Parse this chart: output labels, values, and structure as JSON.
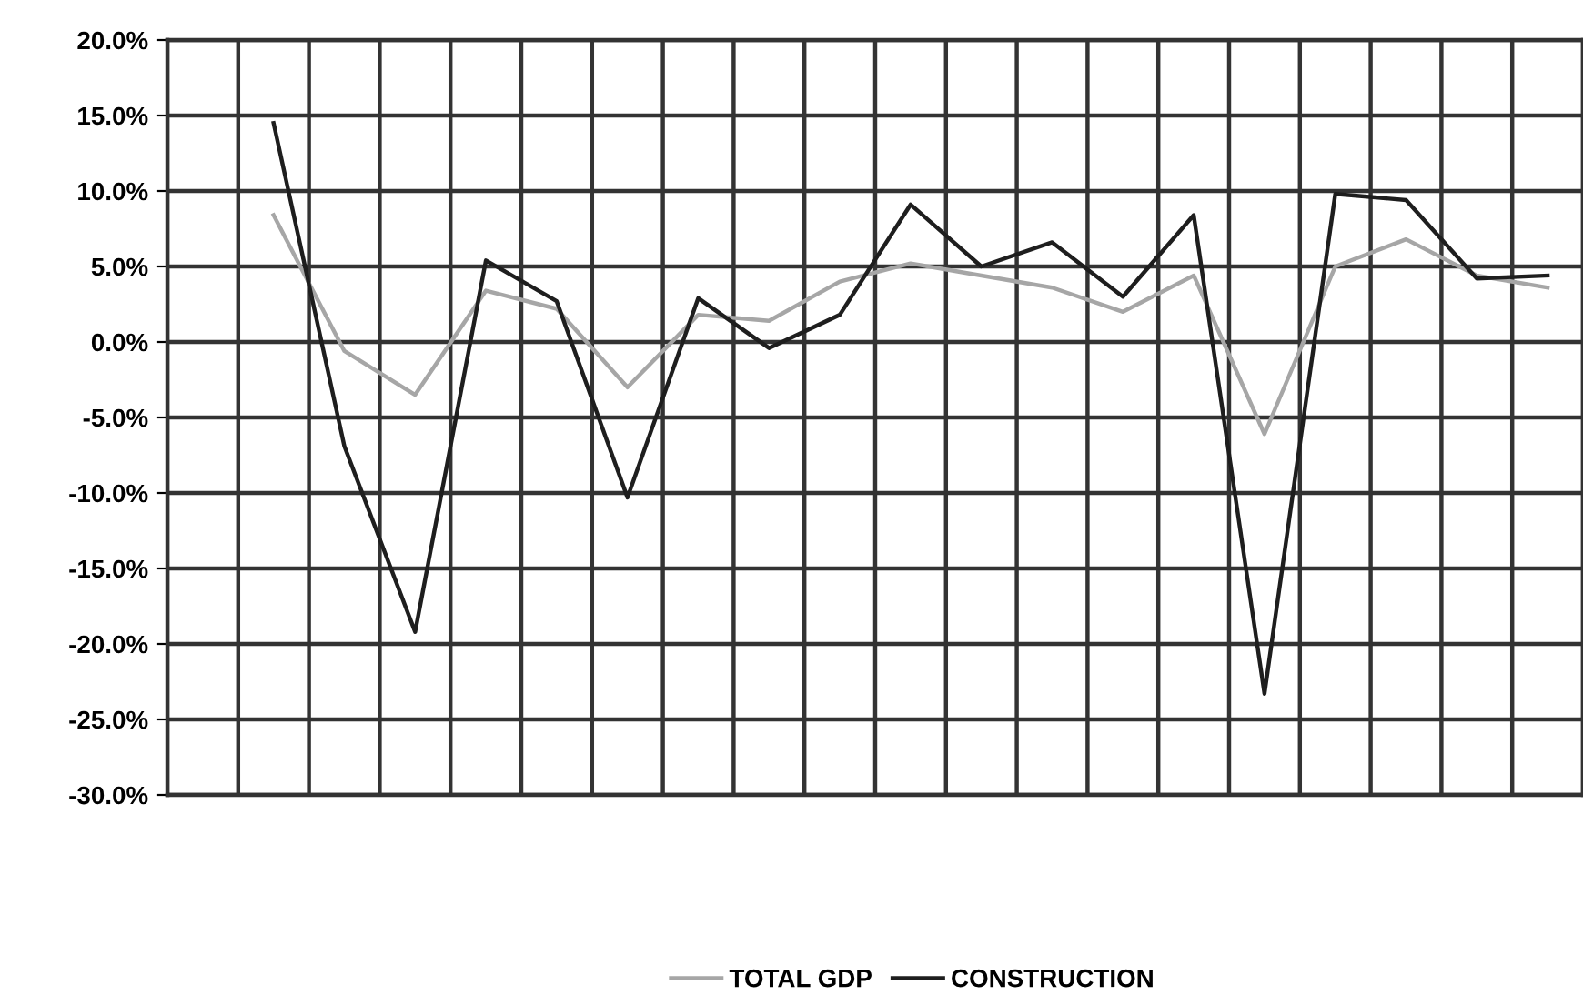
{
  "chart_data": {
    "type": "line",
    "categories": [
      null,
      null,
      null,
      null,
      null,
      null,
      null,
      null,
      null,
      null,
      null,
      null,
      null,
      null,
      null,
      null,
      null,
      null,
      null,
      null
    ],
    "series": [
      {
        "name": "TOTAL GDP",
        "color": "#a6a6a6",
        "values": [
          null,
          8.4,
          -0.6,
          -3.5,
          3.4,
          2.2,
          -3.0,
          1.8,
          1.4,
          4.0,
          5.2,
          4.4,
          3.6,
          2.0,
          4.4,
          -6.1,
          5.0,
          6.8,
          4.4,
          3.6
        ]
      },
      {
        "name": "CONSTRUCTION",
        "color": "#1e1e1e",
        "values": [
          null,
          14.5,
          -6.9,
          -19.2,
          5.4,
          2.7,
          -10.3,
          2.9,
          -0.4,
          1.8,
          9.1,
          5.0,
          6.6,
          3.0,
          8.4,
          -23.3,
          9.8,
          9.4,
          4.2,
          4.4
        ]
      }
    ],
    "ylim": [
      -30,
      20
    ],
    "yticks": [
      {
        "value": -30,
        "label": "-30.0%"
      },
      {
        "value": -25,
        "label": "-25.0%"
      },
      {
        "value": -20,
        "label": "-20.0%"
      },
      {
        "value": -15,
        "label": "-15.0%"
      },
      {
        "value": -10,
        "label": "-10.0%"
      },
      {
        "value": -5,
        "label": "-5.0%"
      },
      {
        "value": 0,
        "label": "0.0%"
      },
      {
        "value": 5,
        "label": "5.0%"
      },
      {
        "value": 10,
        "label": "10.0%"
      },
      {
        "value": 15,
        "label": "15.0%"
      },
      {
        "value": 20,
        "label": "20.0%"
      }
    ],
    "grid": true,
    "legend": "bottom",
    "marker": "none",
    "line_style": "solid",
    "tick_labels": "y"
  }
}
